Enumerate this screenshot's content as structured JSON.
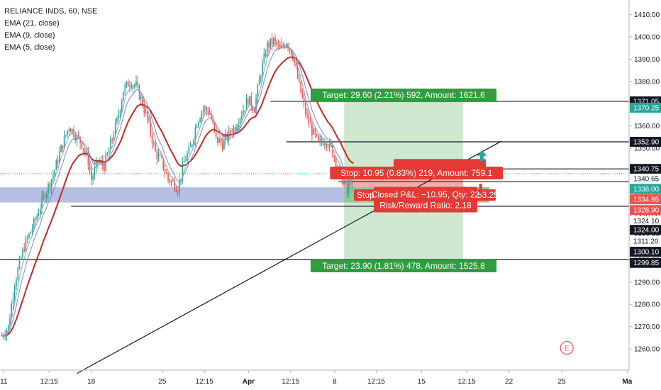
{
  "legend": {
    "symbol": "RELIANCE INDS, 60, NSE",
    "ema21": "EMA (21, close)",
    "ema9": "EMA (9, close)",
    "ema5": "EMA (5, close)"
  },
  "chart_data": {
    "type": "candlestick",
    "y_axis": {
      "ylim": [
        1250.5,
        1416.5
      ],
      "ticks": [
        1260,
        1270,
        1280,
        1290,
        1300,
        1310,
        1320,
        1330,
        1340,
        1350,
        1360,
        1370,
        1380,
        1390,
        1400,
        1410
      ],
      "tick_labels": [
        "1260.00",
        "1270.00",
        "1280.00",
        "1290.00",
        "1300.00",
        "1310.00",
        "1320.00",
        "1330.00",
        "1340.00",
        "1350.00",
        "1360.00",
        "1370.00",
        "1380.00",
        "1390.00",
        "1400.00",
        "1410.00"
      ]
    },
    "x_axis": {
      "labels": [
        "11",
        "12:15",
        "18",
        "25",
        "12:15",
        "Apr",
        "12:15",
        "8",
        "12:15",
        "15",
        "12:15",
        "22",
        "25",
        "Ma"
      ],
      "bold": [
        false,
        false,
        false,
        false,
        false,
        true,
        false,
        false,
        false,
        false,
        false,
        false,
        false,
        true
      ]
    },
    "price_tags": [
      {
        "label": "1371.05",
        "value": 1371.05,
        "color": "#131722",
        "text_color": "#ffffff"
      },
      {
        "label": "1370.25",
        "value": 1368.2,
        "color": "#26a69a",
        "text_color": "#ffffff"
      },
      {
        "label": "1352.90",
        "value": 1352.9,
        "color": "#131722",
        "text_color": "#ffffff"
      },
      {
        "label": "1340.75",
        "value": 1340.75,
        "color": "#131722",
        "text_color": "#ffffff"
      },
      {
        "label": "1340.65",
        "value": 1336.4,
        "color": "#ffffff",
        "text_color": "#131722"
      },
      {
        "label": "1338.00",
        "value": 1331.8,
        "color": "#26a69a",
        "text_color": "#ffffff"
      },
      {
        "label": "1334.95",
        "value": 1327.1,
        "color": "#ef5350",
        "text_color": "#ffffff"
      },
      {
        "label": "1328.90",
        "value": 1322.3,
        "color": "#ef5350",
        "text_color": "#ffffff"
      },
      {
        "label": "1324.10",
        "value": 1317.4,
        "color": "#ffffff",
        "text_color": "#131722"
      },
      {
        "label": "1324.00",
        "value": 1313.4,
        "color": "#131722",
        "text_color": "#ffffff"
      },
      {
        "label": "1311.20",
        "value": 1308.4,
        "color": "#ffffff",
        "text_color": "#131722"
      },
      {
        "label": "1300.10",
        "value": 1303.6,
        "color": "#131722",
        "text_color": "#ffffff"
      },
      {
        "label": "1299.85",
        "value": 1298.6,
        "color": "#131722",
        "text_color": "#ffffff"
      }
    ],
    "zone": {
      "from": 1325.7,
      "to": 1332.5,
      "color": "#9fa8da"
    },
    "horizontal_lines": [
      {
        "value": 1371.05,
        "x_from": 0.43
      },
      {
        "value": 1352.9,
        "x_from": 0.455
      },
      {
        "value": 1340.75,
        "x_from": 0.538
      },
      {
        "value": 1334.95,
        "x_from": 0.538
      },
      {
        "value": 1324.0,
        "x_from": 0.113
      },
      {
        "value": 1300.1,
        "x_from": 0.0
      }
    ],
    "dotted_line": {
      "value": 1338.6,
      "color": "#26a69a"
    },
    "trend_line": {
      "points": [
        [
          0.122,
          1249.0
        ],
        [
          0.797,
          1353.2
        ]
      ]
    },
    "position": {
      "x_from": 0.547,
      "x_to": 0.736,
      "entry": 1332.2,
      "stop": 1338.6,
      "target_up": 1371.05,
      "target_down": 1300.1,
      "target_up_label": "Target: 29.60 (2.21%) 592, Amount: 1621.6",
      "stop_label": "Stop: 10.95 (0.83%) 219, Amount: 759.1",
      "closed_label": "Closed P&L: −10.95, Qty: 22",
      "rr_label": "Risk/Reward Ratio: 2.18",
      "hidden_label": "Stop:",
      "hidden_label_right": "53.25",
      "target_down_label": "Target: 23.90 (1.81%) 478, Amount: 1525.8"
    },
    "arrows": [
      {
        "direction": "up",
        "x": 0.766,
        "value": 1346.3,
        "color": "#26a69a"
      },
      {
        "direction": "down",
        "x": 0.764,
        "value": 1332.2,
        "color": "#e53935"
      }
    ],
    "events": [
      {
        "label": "E",
        "x": 0.901,
        "value": 1260.5
      }
    ],
    "candles": {
      "x_start": 0.003,
      "x_end": 0.562,
      "close_path": [
        [
          0,
          1266
        ],
        [
          4,
          1270
        ],
        [
          8,
          1290
        ],
        [
          14,
          1306
        ],
        [
          20,
          1316
        ],
        [
          26,
          1328
        ],
        [
          32,
          1338
        ],
        [
          38,
          1352
        ],
        [
          42,
          1360
        ],
        [
          46,
          1356
        ],
        [
          50,
          1352
        ],
        [
          54,
          1344
        ],
        [
          56,
          1336
        ],
        [
          60,
          1344
        ],
        [
          64,
          1342
        ],
        [
          68,
          1352
        ],
        [
          72,
          1362
        ],
        [
          76,
          1376
        ],
        [
          80,
          1380
        ],
        [
          84,
          1378
        ],
        [
          88,
          1370
        ],
        [
          92,
          1360
        ],
        [
          96,
          1348
        ],
        [
          100,
          1344
        ],
        [
          104,
          1336
        ],
        [
          108,
          1334
        ],
        [
          110,
          1332
        ],
        [
          114,
          1344
        ],
        [
          118,
          1350
        ],
        [
          122,
          1362
        ],
        [
          126,
          1368
        ],
        [
          130,
          1366
        ],
        [
          134,
          1354
        ],
        [
          138,
          1352
        ],
        [
          142,
          1356
        ],
        [
          146,
          1360
        ],
        [
          150,
          1366
        ],
        [
          154,
          1372
        ],
        [
          158,
          1368
        ],
        [
          162,
          1384
        ],
        [
          166,
          1396
        ],
        [
          170,
          1398
        ],
        [
          174,
          1394
        ],
        [
          178,
          1398
        ],
        [
          182,
          1392
        ],
        [
          186,
          1378
        ],
        [
          190,
          1366
        ],
        [
          194,
          1358
        ],
        [
          198,
          1352
        ],
        [
          202,
          1354
        ],
        [
          206,
          1350
        ],
        [
          210,
          1342
        ],
        [
          214,
          1334
        ],
        [
          216,
          1330
        ],
        [
          218,
          1336
        ],
        [
          220,
          1338
        ]
      ],
      "up_color": "#26a69a",
      "down_color": "#ef5350",
      "ema21_color": "#c62828",
      "ema9_color": "#7986cb",
      "ema5_color": "#90a4ae"
    }
  }
}
